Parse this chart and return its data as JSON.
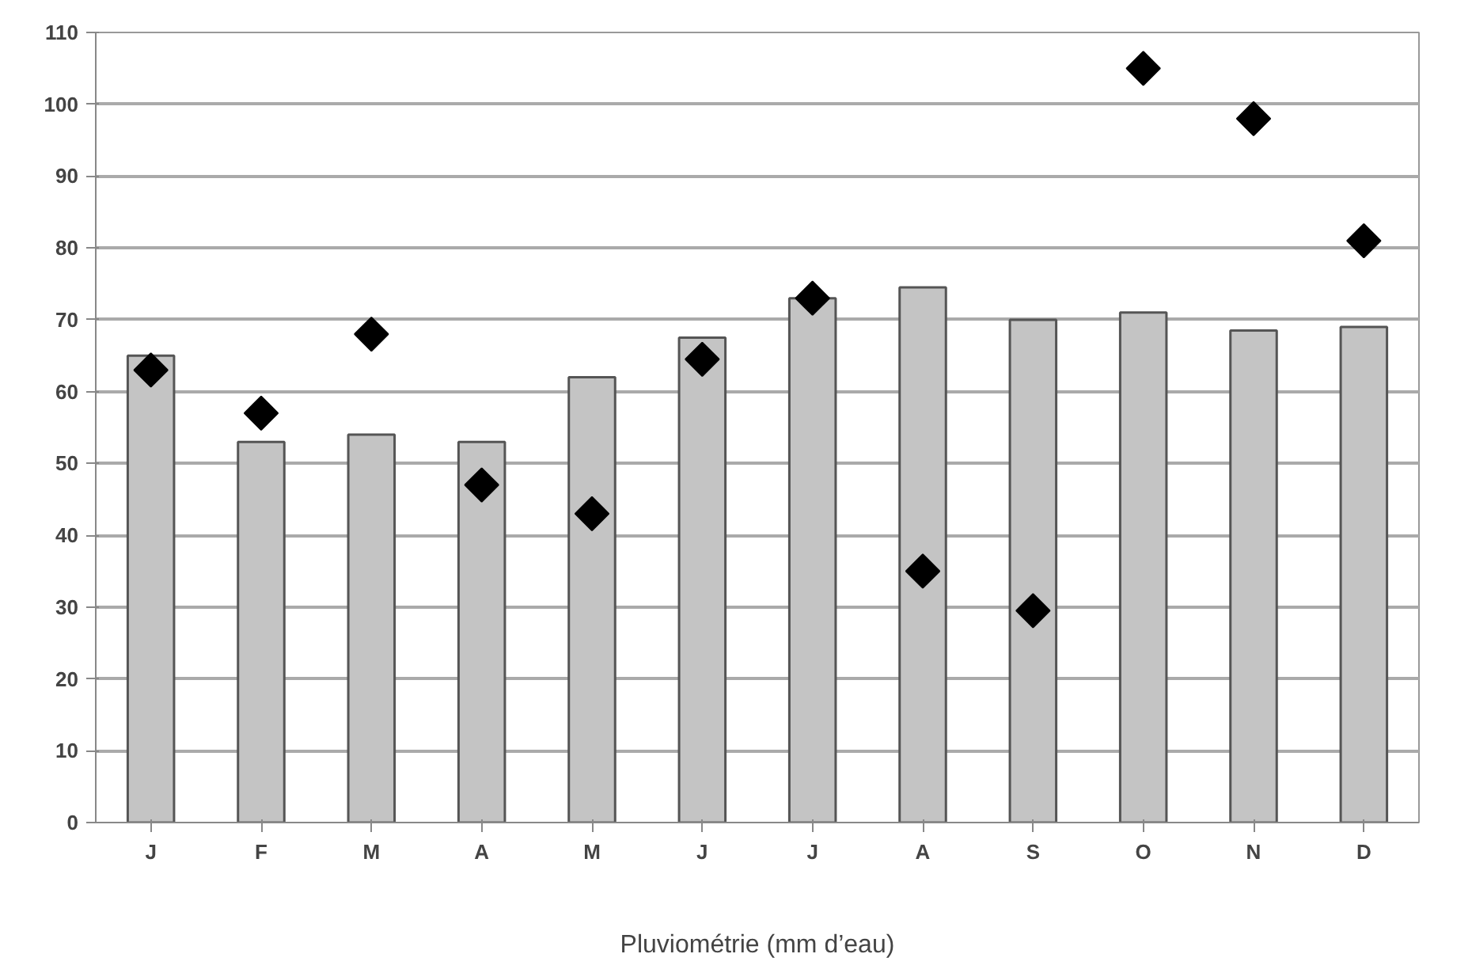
{
  "chart_data": {
    "type": "bar",
    "xlabel": "Pluviométrie (mm d’eau)",
    "categories": [
      "J",
      "F",
      "M",
      "A",
      "M",
      "J",
      "J",
      "A",
      "S",
      "O",
      "N",
      "D"
    ],
    "series": [
      {
        "color": "#c4c4c4",
        "values": [
          65,
          53,
          54,
          53,
          62,
          67.5,
          73,
          74.5,
          70,
          71,
          68.5,
          69
        ]
      },
      {
        "type": "scatter",
        "color": "#000000",
        "marker": "diamond",
        "values": [
          63,
          57,
          68,
          47,
          43,
          64.5,
          73,
          35,
          29.5,
          105,
          98,
          81
        ]
      }
    ],
    "ylim": [
      0,
      110
    ],
    "yticks": [
      0,
      10,
      20,
      30,
      40,
      50,
      60,
      70,
      80,
      90,
      100,
      110
    ],
    "grid": "y"
  }
}
